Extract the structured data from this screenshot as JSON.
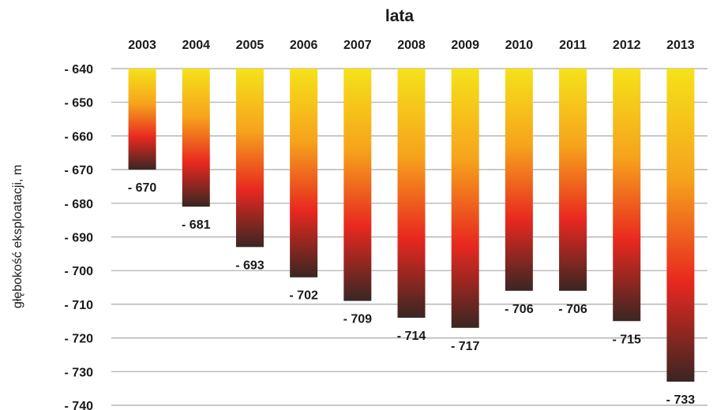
{
  "chart_data": {
    "type": "bar",
    "orientation": "downward-columns",
    "x_axis_title": "lata",
    "y_axis_title": "głębokość eksploatacji, m",
    "categories": [
      "2003",
      "2004",
      "2005",
      "2006",
      "2007",
      "2008",
      "2009",
      "2010",
      "2011",
      "2012",
      "2013"
    ],
    "values": [
      -670,
      -681,
      -693,
      -702,
      -709,
      -714,
      -717,
      -706,
      -706,
      -715,
      -733
    ],
    "data_labels": [
      "- 670",
      "- 681",
      "- 693",
      "- 702",
      "- 709",
      "- 714",
      "- 717",
      "- 706",
      "- 706",
      "- 715",
      "- 733"
    ],
    "y_ticks": [
      -640,
      -650,
      -660,
      -670,
      -680,
      -690,
      -700,
      -710,
      -720,
      -730,
      -740
    ],
    "y_tick_labels": [
      "- 640",
      "- 650",
      "- 660",
      "- 670",
      "- 680",
      "- 690",
      "- 700",
      "- 710",
      "- 720",
      "- 730",
      "- 740"
    ],
    "ylim": [
      -740,
      -640
    ],
    "bar_baseline": -640,
    "x_axis_position": "top",
    "grid": true,
    "legend": "none",
    "colors": {
      "gradient_top": "#f5e21a",
      "gradient_upper": "#f6a31c",
      "gradient_middle": "#e8281f",
      "gradient_bottom": "#3a2622",
      "grid": "#a8a8a8",
      "text": "#1a1a1a"
    }
  }
}
